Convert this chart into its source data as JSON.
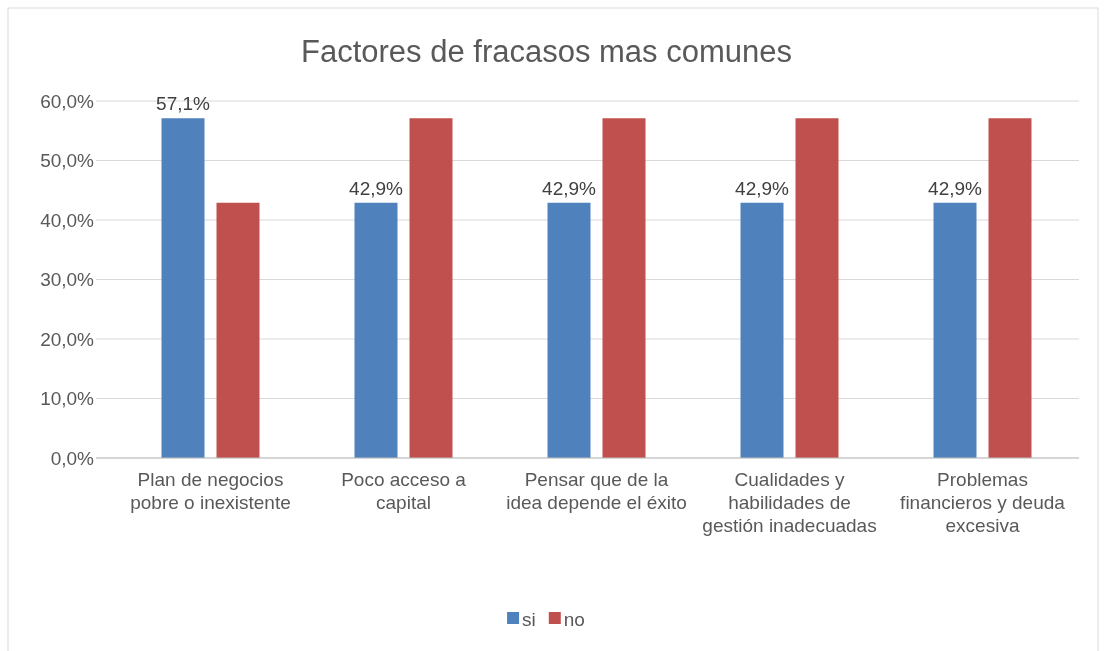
{
  "chart_data": {
    "type": "bar",
    "title": "Factores de fracasos mas comunes",
    "categories": [
      "Plan de negocios pobre o inexistente",
      "Poco acceso a capital",
      "Pensar que de la idea depende el éxito",
      "Cualidades y habilidades de gestión inadecuadas",
      "Problemas financieros y deuda excesiva"
    ],
    "series": [
      {
        "name": "si",
        "color": "#4f81bd",
        "values": [
          57.1,
          42.9,
          42.9,
          42.9,
          42.9
        ],
        "value_labels": [
          "57,1%",
          "42,9%",
          "42,9%",
          "42,9%",
          "42,9%"
        ]
      },
      {
        "name": "no",
        "color": "#c0504d",
        "values": [
          42.9,
          57.1,
          57.1,
          57.1,
          57.1
        ]
      }
    ],
    "ylim": [
      0,
      60
    ],
    "yticks": [
      {
        "value": 0,
        "label": "0,0%"
      },
      {
        "value": 10,
        "label": "10,0%"
      },
      {
        "value": 20,
        "label": "20,0%"
      },
      {
        "value": 30,
        "label": "30,0%"
      },
      {
        "value": 40,
        "label": "40,0%"
      },
      {
        "value": 50,
        "label": "50,0%"
      },
      {
        "value": 60,
        "label": "60,0%"
      }
    ],
    "grid": "y",
    "legend": "bottom"
  }
}
